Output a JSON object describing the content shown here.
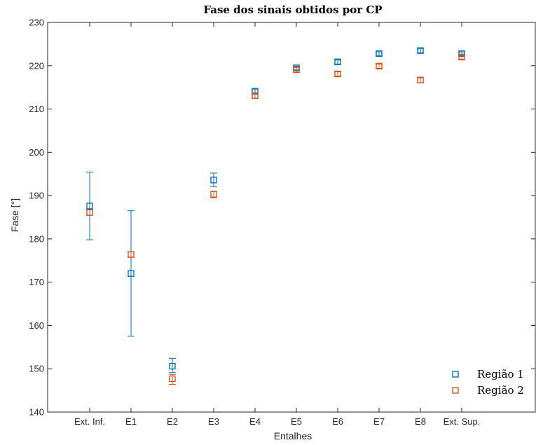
{
  "chart_data": {
    "type": "scatter",
    "title": "Fase dos sinais obtidos por CP",
    "xlabel": "Entalhes",
    "ylabel": "Fase [°]",
    "categories": [
      "Ext. Inf.",
      "E1",
      "E2",
      "E3",
      "E4",
      "E5",
      "E6",
      "E7",
      "E8",
      "Ext. Sup."
    ],
    "ylim": [
      140,
      230
    ],
    "yticks": [
      140,
      150,
      160,
      170,
      180,
      190,
      200,
      210,
      220,
      230
    ],
    "grid": false,
    "legend_position": "bottom-right",
    "marker": "square",
    "error_bars": true,
    "series": [
      {
        "name": "Região 1",
        "color": "#0072BD",
        "values": [
          187.6,
          172.0,
          150.6,
          193.6,
          214.1,
          219.5,
          220.9,
          222.8,
          223.5,
          222.8
        ],
        "err_low": [
          7.8,
          14.5,
          1.5,
          1.5,
          0.6,
          0.4,
          0.5,
          0.5,
          0.5,
          0.5
        ],
        "err_high": [
          7.8,
          14.5,
          1.8,
          1.6,
          0.5,
          0.4,
          0.4,
          0.4,
          0.4,
          0.4
        ]
      },
      {
        "name": "Região 2",
        "color": "#D95319",
        "values": [
          186.1,
          176.4,
          147.7,
          190.3,
          213.1,
          219.1,
          218.1,
          219.9,
          216.7,
          222.0
        ],
        "err_low": [
          0.6,
          0.6,
          1.3,
          0.8,
          0.6,
          0.6,
          0.5,
          0.5,
          0.6,
          0.5
        ],
        "err_high": [
          0.6,
          0.6,
          1.0,
          0.7,
          0.5,
          0.5,
          0.5,
          0.5,
          0.5,
          0.5
        ]
      }
    ]
  }
}
